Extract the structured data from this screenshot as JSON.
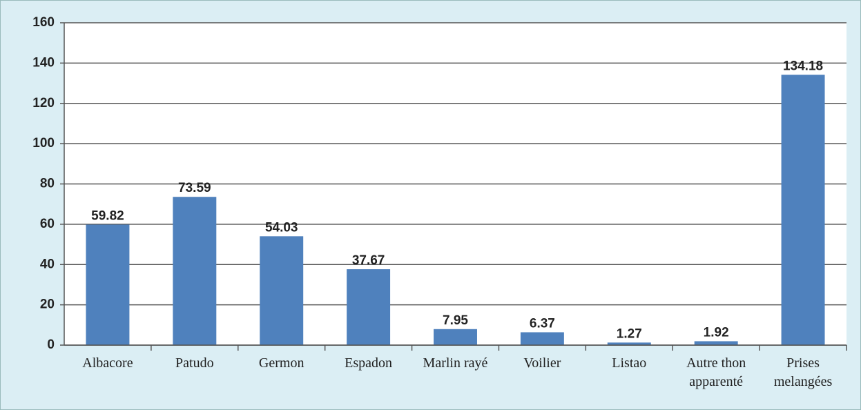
{
  "chart_data": {
    "type": "bar",
    "categories": [
      "Albacore",
      "Patudo",
      "Germon",
      "Espadon",
      "Marlin rayé",
      "Voilier",
      "Listao",
      "Autre thon apparenté",
      "Prises melangées"
    ],
    "values": [
      59.82,
      73.59,
      54.03,
      37.67,
      7.95,
      6.37,
      1.27,
      1.92,
      134.18
    ],
    "color": "#4f81bd",
    "ylim": [
      0,
      160
    ],
    "yticks": [
      0,
      20,
      40,
      60,
      80,
      100,
      120,
      140,
      160
    ],
    "grid": true
  }
}
